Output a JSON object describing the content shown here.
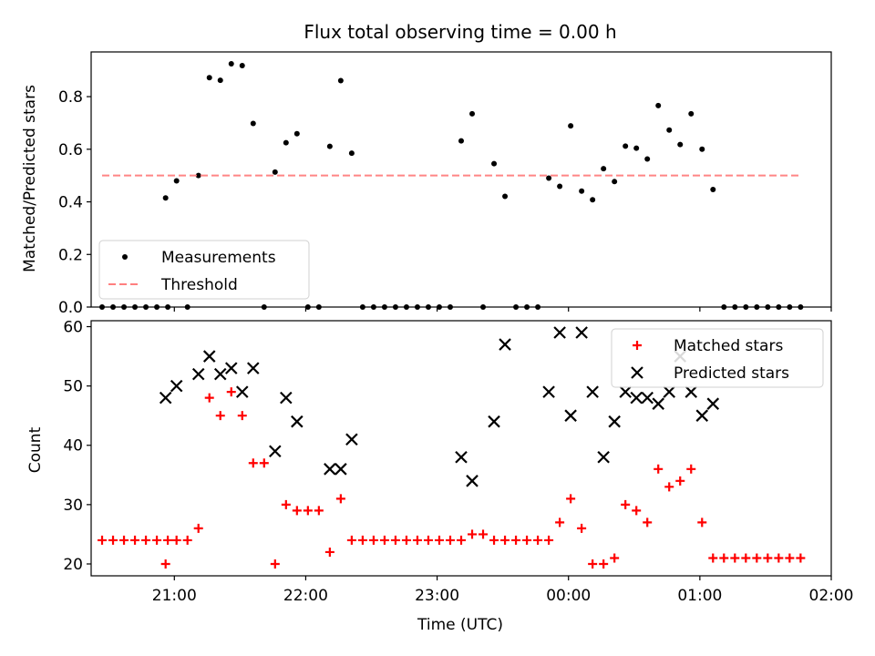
{
  "chart_data": [
    {
      "type": "scatter",
      "title": "Flux total observing time = 0.00 h",
      "xlabel": "",
      "ylabel": "Matched/Predicted stars",
      "ylim": [
        0,
        0.97
      ],
      "yticks": [
        0.0,
        0.2,
        0.4,
        0.6,
        0.8
      ],
      "ytick_labels": [
        "0.0",
        "0.2",
        "0.4",
        "0.6",
        "0.8"
      ],
      "xlim": [
        "20:22",
        "02:00"
      ],
      "legend_position": "lower-left",
      "grid": false,
      "series": [
        {
          "name": "Measurements",
          "marker": "dot",
          "color": "#000000",
          "points": [
            {
              "x": "20:27",
              "y": 0.0
            },
            {
              "x": "20:32",
              "y": 0.0
            },
            {
              "x": "20:37",
              "y": 0.0
            },
            {
              "x": "20:42",
              "y": 0.0
            },
            {
              "x": "20:47",
              "y": 0.0
            },
            {
              "x": "20:52",
              "y": 0.0
            },
            {
              "x": "20:57",
              "y": 0.0
            },
            {
              "x": "20:56",
              "y": 0.415
            },
            {
              "x": "21:01",
              "y": 0.48
            },
            {
              "x": "21:06",
              "y": 0.0
            },
            {
              "x": "21:11",
              "y": 0.5
            },
            {
              "x": "21:16",
              "y": 0.872
            },
            {
              "x": "21:21",
              "y": 0.862
            },
            {
              "x": "21:26",
              "y": 0.925
            },
            {
              "x": "21:31",
              "y": 0.918
            },
            {
              "x": "21:36",
              "y": 0.698
            },
            {
              "x": "21:41",
              "y": 0.0
            },
            {
              "x": "21:46",
              "y": 0.513
            },
            {
              "x": "21:51",
              "y": 0.625
            },
            {
              "x": "21:56",
              "y": 0.659
            },
            {
              "x": "22:01",
              "y": 0.0
            },
            {
              "x": "22:06",
              "y": 0.0
            },
            {
              "x": "22:11",
              "y": 0.611
            },
            {
              "x": "22:16",
              "y": 0.861
            },
            {
              "x": "22:21",
              "y": 0.585
            },
            {
              "x": "22:26",
              "y": 0.0
            },
            {
              "x": "22:31",
              "y": 0.0
            },
            {
              "x": "22:36",
              "y": 0.0
            },
            {
              "x": "22:41",
              "y": 0.0
            },
            {
              "x": "22:46",
              "y": 0.0
            },
            {
              "x": "22:51",
              "y": 0.0
            },
            {
              "x": "22:56",
              "y": 0.0
            },
            {
              "x": "23:01",
              "y": 0.0
            },
            {
              "x": "23:06",
              "y": 0.0
            },
            {
              "x": "23:11",
              "y": 0.632
            },
            {
              "x": "23:16",
              "y": 0.735
            },
            {
              "x": "23:21",
              "y": 0.0
            },
            {
              "x": "23:26",
              "y": 0.545
            },
            {
              "x": "23:31",
              "y": 0.421
            },
            {
              "x": "23:36",
              "y": 0.0
            },
            {
              "x": "23:41",
              "y": 0.0
            },
            {
              "x": "23:46",
              "y": 0.0
            },
            {
              "x": "23:51",
              "y": 0.49
            },
            {
              "x": "23:56",
              "y": 0.459
            },
            {
              "x": "00:01",
              "y": 0.689
            },
            {
              "x": "00:06",
              "y": 0.441
            },
            {
              "x": "00:11",
              "y": 0.408
            },
            {
              "x": "00:16",
              "y": 0.526
            },
            {
              "x": "00:21",
              "y": 0.477
            },
            {
              "x": "00:26",
              "y": 0.612
            },
            {
              "x": "00:31",
              "y": 0.604
            },
            {
              "x": "00:36",
              "y": 0.563
            },
            {
              "x": "00:41",
              "y": 0.766
            },
            {
              "x": "00:46",
              "y": 0.673
            },
            {
              "x": "00:51",
              "y": 0.618
            },
            {
              "x": "00:56",
              "y": 0.735
            },
            {
              "x": "01:01",
              "y": 0.6
            },
            {
              "x": "01:06",
              "y": 0.447
            },
            {
              "x": "01:11",
              "y": 0.0
            },
            {
              "x": "01:16",
              "y": 0.0
            },
            {
              "x": "01:21",
              "y": 0.0
            },
            {
              "x": "01:26",
              "y": 0.0
            },
            {
              "x": "01:31",
              "y": 0.0
            },
            {
              "x": "01:36",
              "y": 0.0
            },
            {
              "x": "01:41",
              "y": 0.0
            },
            {
              "x": "01:46",
              "y": 0.0
            }
          ]
        },
        {
          "name": "Threshold",
          "type": "line",
          "style": "dashed",
          "color": "#ff7f7f",
          "x": [
            "20:27",
            "01:46"
          ],
          "y": [
            0.5,
            0.5
          ]
        }
      ]
    },
    {
      "type": "scatter",
      "title": "",
      "xlabel": "Time (UTC)",
      "ylabel": "Count",
      "ylim": [
        18,
        61
      ],
      "yticks": [
        20,
        30,
        40,
        50,
        60
      ],
      "ytick_labels": [
        "20",
        "30",
        "40",
        "50",
        "60"
      ],
      "xlim": [
        "20:22",
        "02:00"
      ],
      "xticks": [
        "21:00",
        "22:00",
        "23:00",
        "00:00",
        "01:00",
        "02:00"
      ],
      "xtick_labels": [
        "21:00",
        "22:00",
        "23:00",
        "00:00",
        "01:00",
        "02:00"
      ],
      "legend_position": "upper-right",
      "grid": false,
      "series": [
        {
          "name": "Matched stars",
          "marker": "plus",
          "color": "#ff0000",
          "points": [
            {
              "x": "20:27",
              "y": 24
            },
            {
              "x": "20:32",
              "y": 24
            },
            {
              "x": "20:37",
              "y": 24
            },
            {
              "x": "20:42",
              "y": 24
            },
            {
              "x": "20:47",
              "y": 24
            },
            {
              "x": "20:52",
              "y": 24
            },
            {
              "x": "20:57",
              "y": 24
            },
            {
              "x": "20:56",
              "y": 20
            },
            {
              "x": "21:01",
              "y": 24
            },
            {
              "x": "21:06",
              "y": 24
            },
            {
              "x": "21:11",
              "y": 26
            },
            {
              "x": "21:16",
              "y": 48
            },
            {
              "x": "21:21",
              "y": 45
            },
            {
              "x": "21:26",
              "y": 49
            },
            {
              "x": "21:31",
              "y": 45
            },
            {
              "x": "21:36",
              "y": 37
            },
            {
              "x": "21:41",
              "y": 37
            },
            {
              "x": "21:46",
              "y": 20
            },
            {
              "x": "21:51",
              "y": 30
            },
            {
              "x": "21:56",
              "y": 29
            },
            {
              "x": "22:01",
              "y": 29
            },
            {
              "x": "22:06",
              "y": 29
            },
            {
              "x": "22:11",
              "y": 22
            },
            {
              "x": "22:16",
              "y": 31
            },
            {
              "x": "22:21",
              "y": 24
            },
            {
              "x": "22:26",
              "y": 24
            },
            {
              "x": "22:31",
              "y": 24
            },
            {
              "x": "22:36",
              "y": 24
            },
            {
              "x": "22:41",
              "y": 24
            },
            {
              "x": "22:46",
              "y": 24
            },
            {
              "x": "22:51",
              "y": 24
            },
            {
              "x": "22:56",
              "y": 24
            },
            {
              "x": "23:01",
              "y": 24
            },
            {
              "x": "23:06",
              "y": 24
            },
            {
              "x": "23:11",
              "y": 24
            },
            {
              "x": "23:16",
              "y": 25
            },
            {
              "x": "23:21",
              "y": 25
            },
            {
              "x": "23:26",
              "y": 24
            },
            {
              "x": "23:31",
              "y": 24
            },
            {
              "x": "23:36",
              "y": 24
            },
            {
              "x": "23:41",
              "y": 24
            },
            {
              "x": "23:46",
              "y": 24
            },
            {
              "x": "23:51",
              "y": 24
            },
            {
              "x": "23:56",
              "y": 27
            },
            {
              "x": "00:01",
              "y": 31
            },
            {
              "x": "00:06",
              "y": 26
            },
            {
              "x": "00:11",
              "y": 20
            },
            {
              "x": "00:16",
              "y": 20
            },
            {
              "x": "00:21",
              "y": 21
            },
            {
              "x": "00:26",
              "y": 30
            },
            {
              "x": "00:31",
              "y": 29
            },
            {
              "x": "00:36",
              "y": 27
            },
            {
              "x": "00:41",
              "y": 36
            },
            {
              "x": "00:46",
              "y": 33
            },
            {
              "x": "00:51",
              "y": 34
            },
            {
              "x": "00:56",
              "y": 36
            },
            {
              "x": "01:01",
              "y": 27
            },
            {
              "x": "01:06",
              "y": 21
            },
            {
              "x": "01:11",
              "y": 21
            },
            {
              "x": "01:16",
              "y": 21
            },
            {
              "x": "01:21",
              "y": 21
            },
            {
              "x": "01:26",
              "y": 21
            },
            {
              "x": "01:31",
              "y": 21
            },
            {
              "x": "01:36",
              "y": 21
            },
            {
              "x": "01:41",
              "y": 21
            },
            {
              "x": "01:46",
              "y": 21
            }
          ]
        },
        {
          "name": "Predicted stars",
          "marker": "x",
          "color": "#000000",
          "points": [
            {
              "x": "20:56",
              "y": 48
            },
            {
              "x": "21:01",
              "y": 50
            },
            {
              "x": "21:11",
              "y": 52
            },
            {
              "x": "21:16",
              "y": 55
            },
            {
              "x": "21:21",
              "y": 52
            },
            {
              "x": "21:26",
              "y": 53
            },
            {
              "x": "21:31",
              "y": 49
            },
            {
              "x": "21:36",
              "y": 53
            },
            {
              "x": "21:46",
              "y": 39
            },
            {
              "x": "21:51",
              "y": 48
            },
            {
              "x": "21:56",
              "y": 44
            },
            {
              "x": "22:11",
              "y": 36
            },
            {
              "x": "22:16",
              "y": 36
            },
            {
              "x": "22:21",
              "y": 41
            },
            {
              "x": "23:11",
              "y": 38
            },
            {
              "x": "23:16",
              "y": 34
            },
            {
              "x": "23:26",
              "y": 44
            },
            {
              "x": "23:31",
              "y": 57
            },
            {
              "x": "23:51",
              "y": 49
            },
            {
              "x": "23:56",
              "y": 59
            },
            {
              "x": "00:01",
              "y": 45
            },
            {
              "x": "00:06",
              "y": 59
            },
            {
              "x": "00:11",
              "y": 49
            },
            {
              "x": "00:16",
              "y": 38
            },
            {
              "x": "00:21",
              "y": 44
            },
            {
              "x": "00:26",
              "y": 49
            },
            {
              "x": "00:31",
              "y": 48
            },
            {
              "x": "00:36",
              "y": 48
            },
            {
              "x": "00:41",
              "y": 47
            },
            {
              "x": "00:46",
              "y": 49
            },
            {
              "x": "00:51",
              "y": 55
            },
            {
              "x": "00:56",
              "y": 49
            },
            {
              "x": "01:01",
              "y": 45
            },
            {
              "x": "01:06",
              "y": 47
            }
          ]
        }
      ]
    }
  ]
}
